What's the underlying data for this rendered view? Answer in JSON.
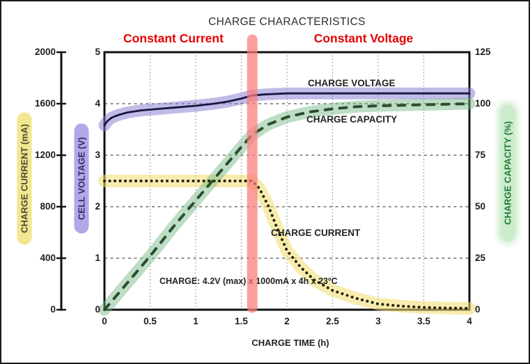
{
  "title": "CHARGE CHARACTERISTICS",
  "region_labels": {
    "left": "Constant Current",
    "right": "Constant Voltage"
  },
  "curve_labels": {
    "voltage": "CHARGE VOLTAGE",
    "capacity": "CHARGE CAPACITY",
    "current": "CHARGE CURRENT"
  },
  "annotation": "CHARGE: 4.2V (max) x 1000mA x 4h x 23ºC",
  "axes": {
    "x": {
      "label": "CHARGE TIME (h)",
      "ticks": [
        "0",
        "0.5",
        "1",
        "1.5",
        "2",
        "2.5",
        "3",
        "3.5",
        "4"
      ]
    },
    "current": {
      "label": "CHARGE CURRENT (mA)",
      "ticks": [
        "2000",
        "1600",
        "1200",
        "800",
        "400",
        "0"
      ]
    },
    "voltage": {
      "label": "CELL VOLTAGE (V)",
      "ticks": [
        "5",
        "4",
        "3",
        "2",
        "1",
        "0"
      ]
    },
    "capacity": {
      "label": "CHARGE CAPACITY (%)",
      "ticks": [
        "125",
        "100",
        "75",
        "50",
        "25",
        "0"
      ]
    }
  },
  "colors": {
    "highlight_current": "#f0dd6e",
    "highlight_voltage": "#8478d2",
    "highlight_capacity": "#6fb47e",
    "cc_cv_divider": "#f97a7a",
    "region_text": "#e60000",
    "curve_voltage": "#16163e",
    "curve_capacity": "#2e4d2e",
    "curve_current": "#23230a",
    "capacity_axis_text": "#1e7d33"
  },
  "chart_data": {
    "type": "line",
    "title": "CHARGE CHARACTERISTICS",
    "xlabel": "CHARGE TIME (h)",
    "x_range_h": [
      0,
      4
    ],
    "x_ticks": [
      0,
      0.5,
      1,
      1.5,
      2,
      2.5,
      3,
      3.5,
      4
    ],
    "grid": "dashed",
    "cc_to_cv_transition_h": 1.62,
    "charge_condition": "CHARGE: 4.2V (max) x 1000mA x 4h x 23ºC",
    "series": [
      {
        "name": "CHARGE VOLTAGE",
        "axis_label": "CELL VOLTAGE (V)",
        "unit": "V",
        "ylim": [
          0,
          5
        ],
        "line_style": "solid",
        "x": [
          0,
          0.03,
          0.08,
          0.15,
          0.25,
          0.4,
          0.6,
          0.8,
          1.0,
          1.2,
          1.35,
          1.5,
          1.62,
          1.75,
          2.0,
          2.5,
          3.0,
          3.5,
          4.0
        ],
        "y": [
          3.58,
          3.66,
          3.73,
          3.78,
          3.83,
          3.87,
          3.9,
          3.93,
          3.96,
          4.0,
          4.04,
          4.1,
          4.16,
          4.18,
          4.2,
          4.2,
          4.2,
          4.2,
          4.2
        ]
      },
      {
        "name": "CHARGE CAPACITY",
        "axis_label": "CHARGE CAPACITY (%)",
        "unit": "%",
        "ylim": [
          0,
          125
        ],
        "line_style": "dashed",
        "x": [
          0,
          0.25,
          0.5,
          0.75,
          1.0,
          1.25,
          1.5,
          1.62,
          1.8,
          2.0,
          2.25,
          2.5,
          2.75,
          3.0,
          3.5,
          4.0
        ],
        "y": [
          0,
          13,
          26,
          40,
          53,
          66,
          79,
          85,
          90,
          93.5,
          96,
          97.5,
          98.5,
          99,
          99.5,
          100
        ]
      },
      {
        "name": "CHARGE CURRENT",
        "axis_label": "CHARGE CURRENT (mA)",
        "unit": "mA",
        "ylim": [
          0,
          2000
        ],
        "line_style": "dotted",
        "x": [
          0,
          0.5,
          1.0,
          1.5,
          1.62,
          1.7,
          1.8,
          1.9,
          2.0,
          2.15,
          2.3,
          2.5,
          2.75,
          3.0,
          3.25,
          3.5,
          3.75,
          4.0
        ],
        "y": [
          1000,
          1000,
          1000,
          1000,
          1000,
          940,
          800,
          620,
          460,
          330,
          230,
          150,
          90,
          45,
          28,
          18,
          13,
          10
        ]
      }
    ]
  }
}
